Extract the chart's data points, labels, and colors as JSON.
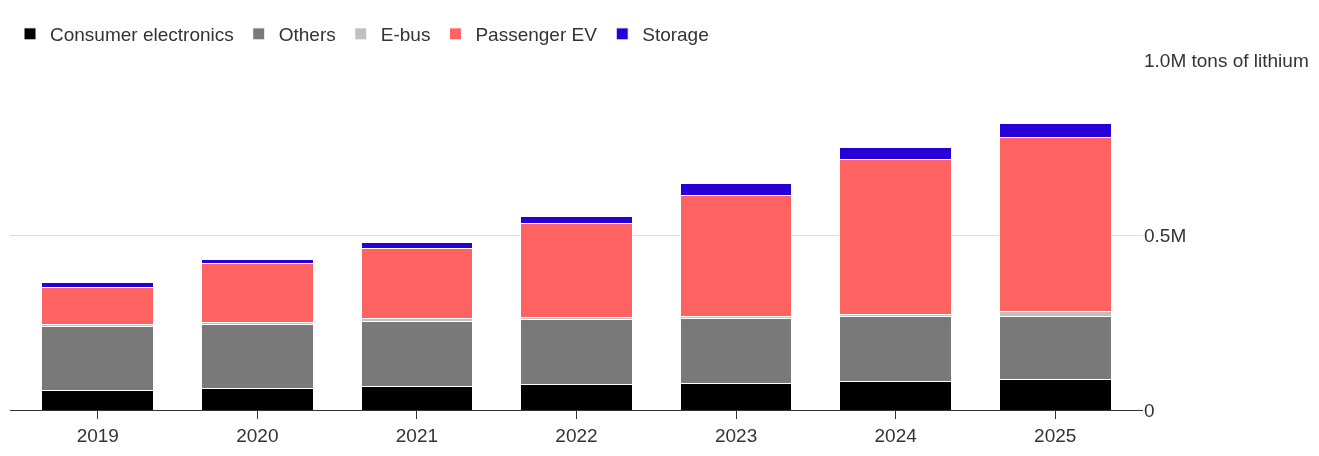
{
  "chart_data": {
    "type": "bar",
    "stacked": true,
    "categories": [
      "2019",
      "2020",
      "2021",
      "2022",
      "2023",
      "2024",
      "2025"
    ],
    "series": [
      {
        "name": "Consumer electronics",
        "color": "#000000",
        "values": [
          0.055,
          0.062,
          0.067,
          0.072,
          0.075,
          0.081,
          0.088
        ]
      },
      {
        "name": "Others",
        "color": "#797979",
        "values": [
          0.184,
          0.182,
          0.186,
          0.187,
          0.187,
          0.187,
          0.179
        ]
      },
      {
        "name": "E-bus",
        "color": "#c0c0c0",
        "values": [
          0.006,
          0.006,
          0.008,
          0.006,
          0.006,
          0.006,
          0.015
        ]
      },
      {
        "name": "Passenger EV",
        "color": "#ff6361",
        "values": [
          0.106,
          0.169,
          0.2,
          0.268,
          0.345,
          0.442,
          0.498
        ]
      },
      {
        "name": "Storage",
        "color": "#2800d7",
        "values": [
          0.014,
          0.01,
          0.019,
          0.019,
          0.034,
          0.035,
          0.04
        ]
      }
    ],
    "ylim": [
      0,
      1.0
    ],
    "yticks": [
      0,
      {
        "value": 0.5,
        "label": "0.5M"
      },
      {
        "value": 1.0,
        "label": "1.0M tons of lithium"
      }
    ],
    "grid": "y",
    "legend": "top left"
  }
}
